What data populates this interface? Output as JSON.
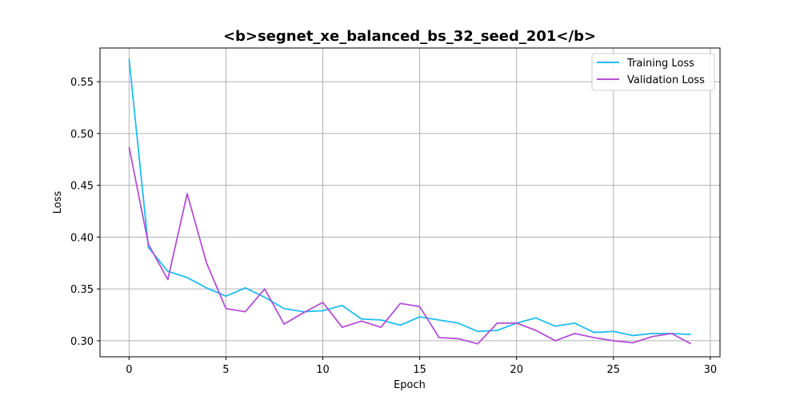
{
  "chart_data": {
    "type": "line",
    "title": "<b>segnet_xe_balanced_bs_32_seed_201</b>",
    "xlabel": "Epoch",
    "ylabel": "Loss",
    "xlim": [
      -1.5,
      30.5
    ],
    "ylim": [
      0.2845,
      0.5825
    ],
    "xticks": [
      0,
      5,
      10,
      15,
      20,
      25,
      30
    ],
    "yticks": [
      0.3,
      0.35,
      0.4,
      0.45,
      0.5,
      0.55
    ],
    "ytick_labels": [
      "0.30",
      "0.35",
      "0.40",
      "0.45",
      "0.50",
      "0.55"
    ],
    "grid": true,
    "legend_position": "top-right",
    "x": [
      0,
      1,
      2,
      3,
      4,
      5,
      6,
      7,
      8,
      9,
      10,
      11,
      12,
      13,
      14,
      15,
      16,
      17,
      18,
      19,
      20,
      21,
      22,
      23,
      24,
      25,
      26,
      27,
      28,
      29
    ],
    "series": [
      {
        "name": "Training Loss",
        "color": "#1ebcf0",
        "values": [
          0.572,
          0.39,
          0.367,
          0.361,
          0.351,
          0.343,
          0.351,
          0.342,
          0.331,
          0.328,
          0.329,
          0.334,
          0.321,
          0.32,
          0.315,
          0.323,
          0.32,
          0.317,
          0.309,
          0.31,
          0.317,
          0.322,
          0.314,
          0.317,
          0.308,
          0.309,
          0.305,
          0.307,
          0.307,
          0.306
        ]
      },
      {
        "name": "Validation Loss",
        "color": "#b44fd6",
        "values": [
          0.487,
          0.393,
          0.359,
          0.442,
          0.375,
          0.331,
          0.328,
          0.35,
          0.316,
          0.327,
          0.337,
          0.313,
          0.319,
          0.313,
          0.336,
          0.333,
          0.303,
          0.302,
          0.297,
          0.317,
          0.317,
          0.31,
          0.3,
          0.307,
          0.303,
          0.3,
          0.298,
          0.304,
          0.307,
          0.297
        ]
      }
    ]
  }
}
